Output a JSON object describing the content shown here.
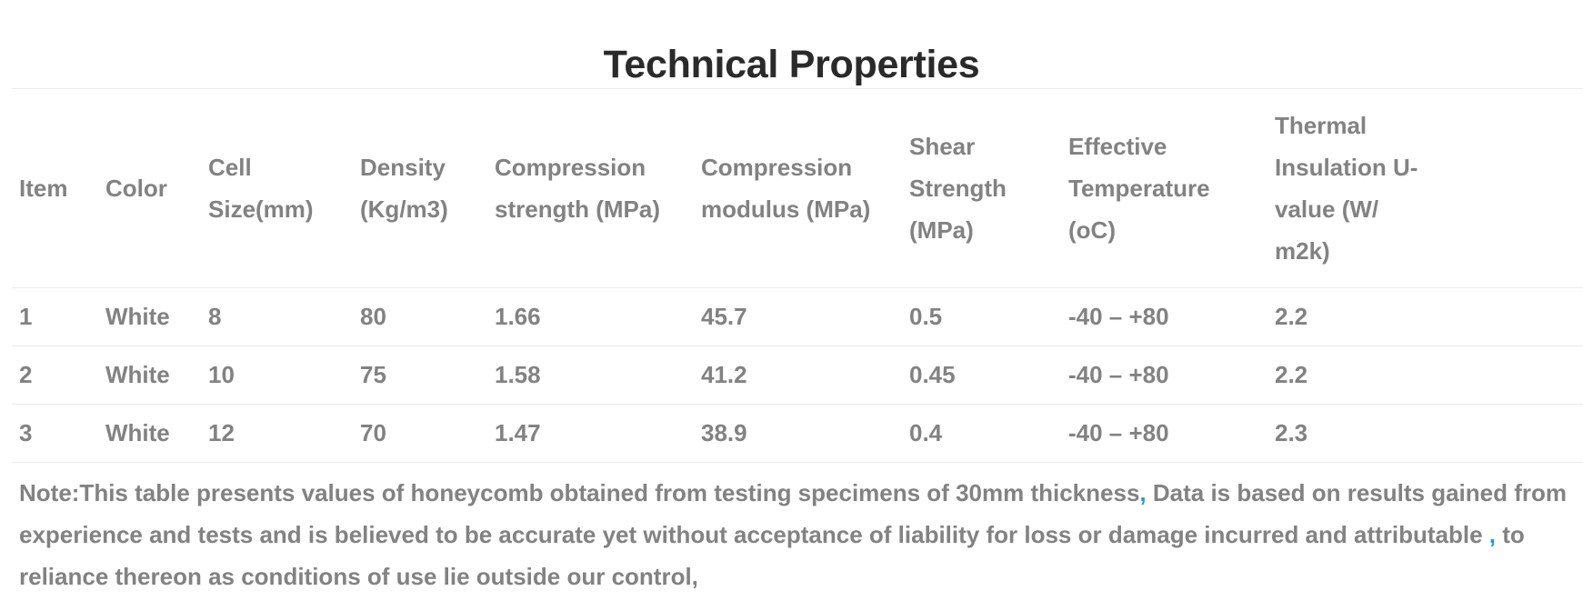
{
  "title": "Technical Properties",
  "table": {
    "headers": [
      "Item",
      "Color",
      "Cell Size(mm)",
      "Density (Kg/m3)",
      "Compression  strength (MPa)",
      "Compression  modulus (MPa)",
      "Shear  Strength (MPa)",
      "Effective  Temperature (oC)",
      "Thermal Insulation U-value (W/ m2k)"
    ],
    "rows": [
      [
        "1",
        "White",
        "8",
        "80",
        "1.66",
        "45.7",
        "0.5",
        "-40 – +80",
        "2.2"
      ],
      [
        "2",
        "White",
        "10",
        "75",
        "1.58",
        "41.2",
        "0.45",
        "-40 – +80",
        "2.2"
      ],
      [
        "3",
        "White",
        "12",
        "70",
        "1.47",
        "38.9",
        "0.4",
        "-40 – +80",
        "2.3"
      ]
    ]
  },
  "note": {
    "part1": "Note:This table presents values of honeycomb obtained from testing specimens of 30mm  thickness",
    "comma1": ",",
    "part2": " Data is based on results gained from experience and tests and is  believed to be accurate yet without acceptance of liability for loss or  damage incurred and attributable ",
    "comma2": ",",
    "part3": " to reliance thereon as conditions of use lie outside our control,"
  },
  "colors": {
    "title": "#2a2a2a",
    "text": "#828282",
    "accent": "#1f9ad6",
    "rule": "#ececec"
  }
}
